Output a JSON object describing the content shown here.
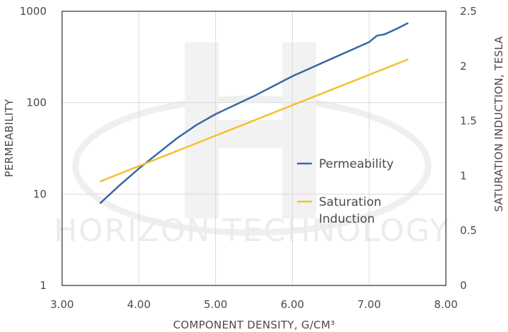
{
  "chart_data": {
    "type": "line",
    "watermark": "HORIZON TECHNOLOGY",
    "xlabel": "COMPONENT DENSITY, G/CM³",
    "ylabel_left": "PERMEABILITY",
    "ylabel_right": "SATURATION INDUCTION, TESLA",
    "x_ticks": [
      "3.00",
      "4.00",
      "5.00",
      "6.00",
      "7.00",
      "8.00"
    ],
    "y_left_ticks": [
      "1",
      "10",
      "100",
      "1000"
    ],
    "y_right_ticks": [
      "0",
      "0.5",
      "1",
      "1.5",
      "2",
      "2.5"
    ],
    "xlim": [
      3,
      8
    ],
    "ylim_left": [
      1,
      1000
    ],
    "y_left_scale": "log",
    "ylim_right": [
      0,
      2.5
    ],
    "grid": "vertical",
    "legend_position": "center-right",
    "series": [
      {
        "name": "Permeability",
        "axis": "left",
        "color": "#3a66a6",
        "x": [
          3.5,
          3.75,
          4.0,
          4.25,
          4.5,
          4.75,
          5.0,
          5.5,
          6.0,
          6.5,
          7.0,
          7.1,
          7.2,
          7.3,
          7.4,
          7.5
        ],
        "y": [
          8,
          12.5,
          19,
          28,
          41,
          57,
          75,
          118,
          195,
          300,
          460,
          540,
          560,
          610,
          670,
          740
        ]
      },
      {
        "name_lines": [
          "Saturation",
          "Induction"
        ],
        "axis": "right",
        "color": "#f2c12e",
        "x": [
          3.5,
          7.5
        ],
        "y": [
          0.95,
          2.06
        ]
      }
    ]
  }
}
